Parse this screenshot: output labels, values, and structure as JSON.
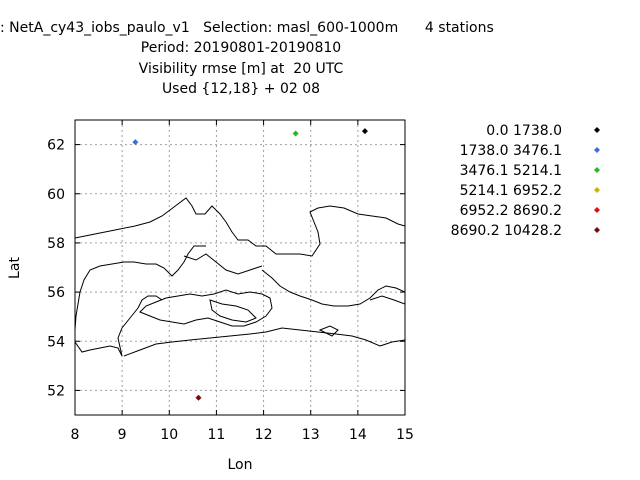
{
  "header": {
    "line1": ": NetA_cy43_iobs_paulo_v1   Selection: masl_600-1000m      4 stations",
    "line2": "Period: 20190801-20190810",
    "line3": "Visibility rmse [m] at  20 UTC",
    "line4": "Used {12,18} + 02 08"
  },
  "chart_data": {
    "type": "scatter",
    "xlabel": "Lon",
    "ylabel": "Lat",
    "xlim": [
      8,
      15
    ],
    "ylim": [
      51,
      63
    ],
    "xticks": [
      "8",
      "9",
      "10",
      "11",
      "12",
      "13",
      "14",
      "15"
    ],
    "yticks": [
      "52",
      "54",
      "56",
      "58",
      "60",
      "62"
    ],
    "grid": true,
    "legend_position": "right",
    "legend": [
      {
        "label": "0.0 1738.0",
        "color": "#000000"
      },
      {
        "label": "1738.0 3476.1",
        "color": "#3c6edc"
      },
      {
        "label": "3476.1 5214.1",
        "color": "#22bb22"
      },
      {
        "label": "5214.1 6952.2",
        "color": "#c8b400"
      },
      {
        "label": "6952.2 8690.2",
        "color": "#e01010"
      },
      {
        "label": "8690.2 10428.2",
        "color": "#7a0a0a"
      }
    ],
    "points": [
      {
        "lon": 9.28,
        "lat": 62.1,
        "class": 1
      },
      {
        "lon": 12.68,
        "lat": 62.45,
        "class": 2
      },
      {
        "lon": 14.15,
        "lat": 62.55,
        "class": 0
      },
      {
        "lon": 10.62,
        "lat": 51.7,
        "class": 5
      }
    ]
  }
}
